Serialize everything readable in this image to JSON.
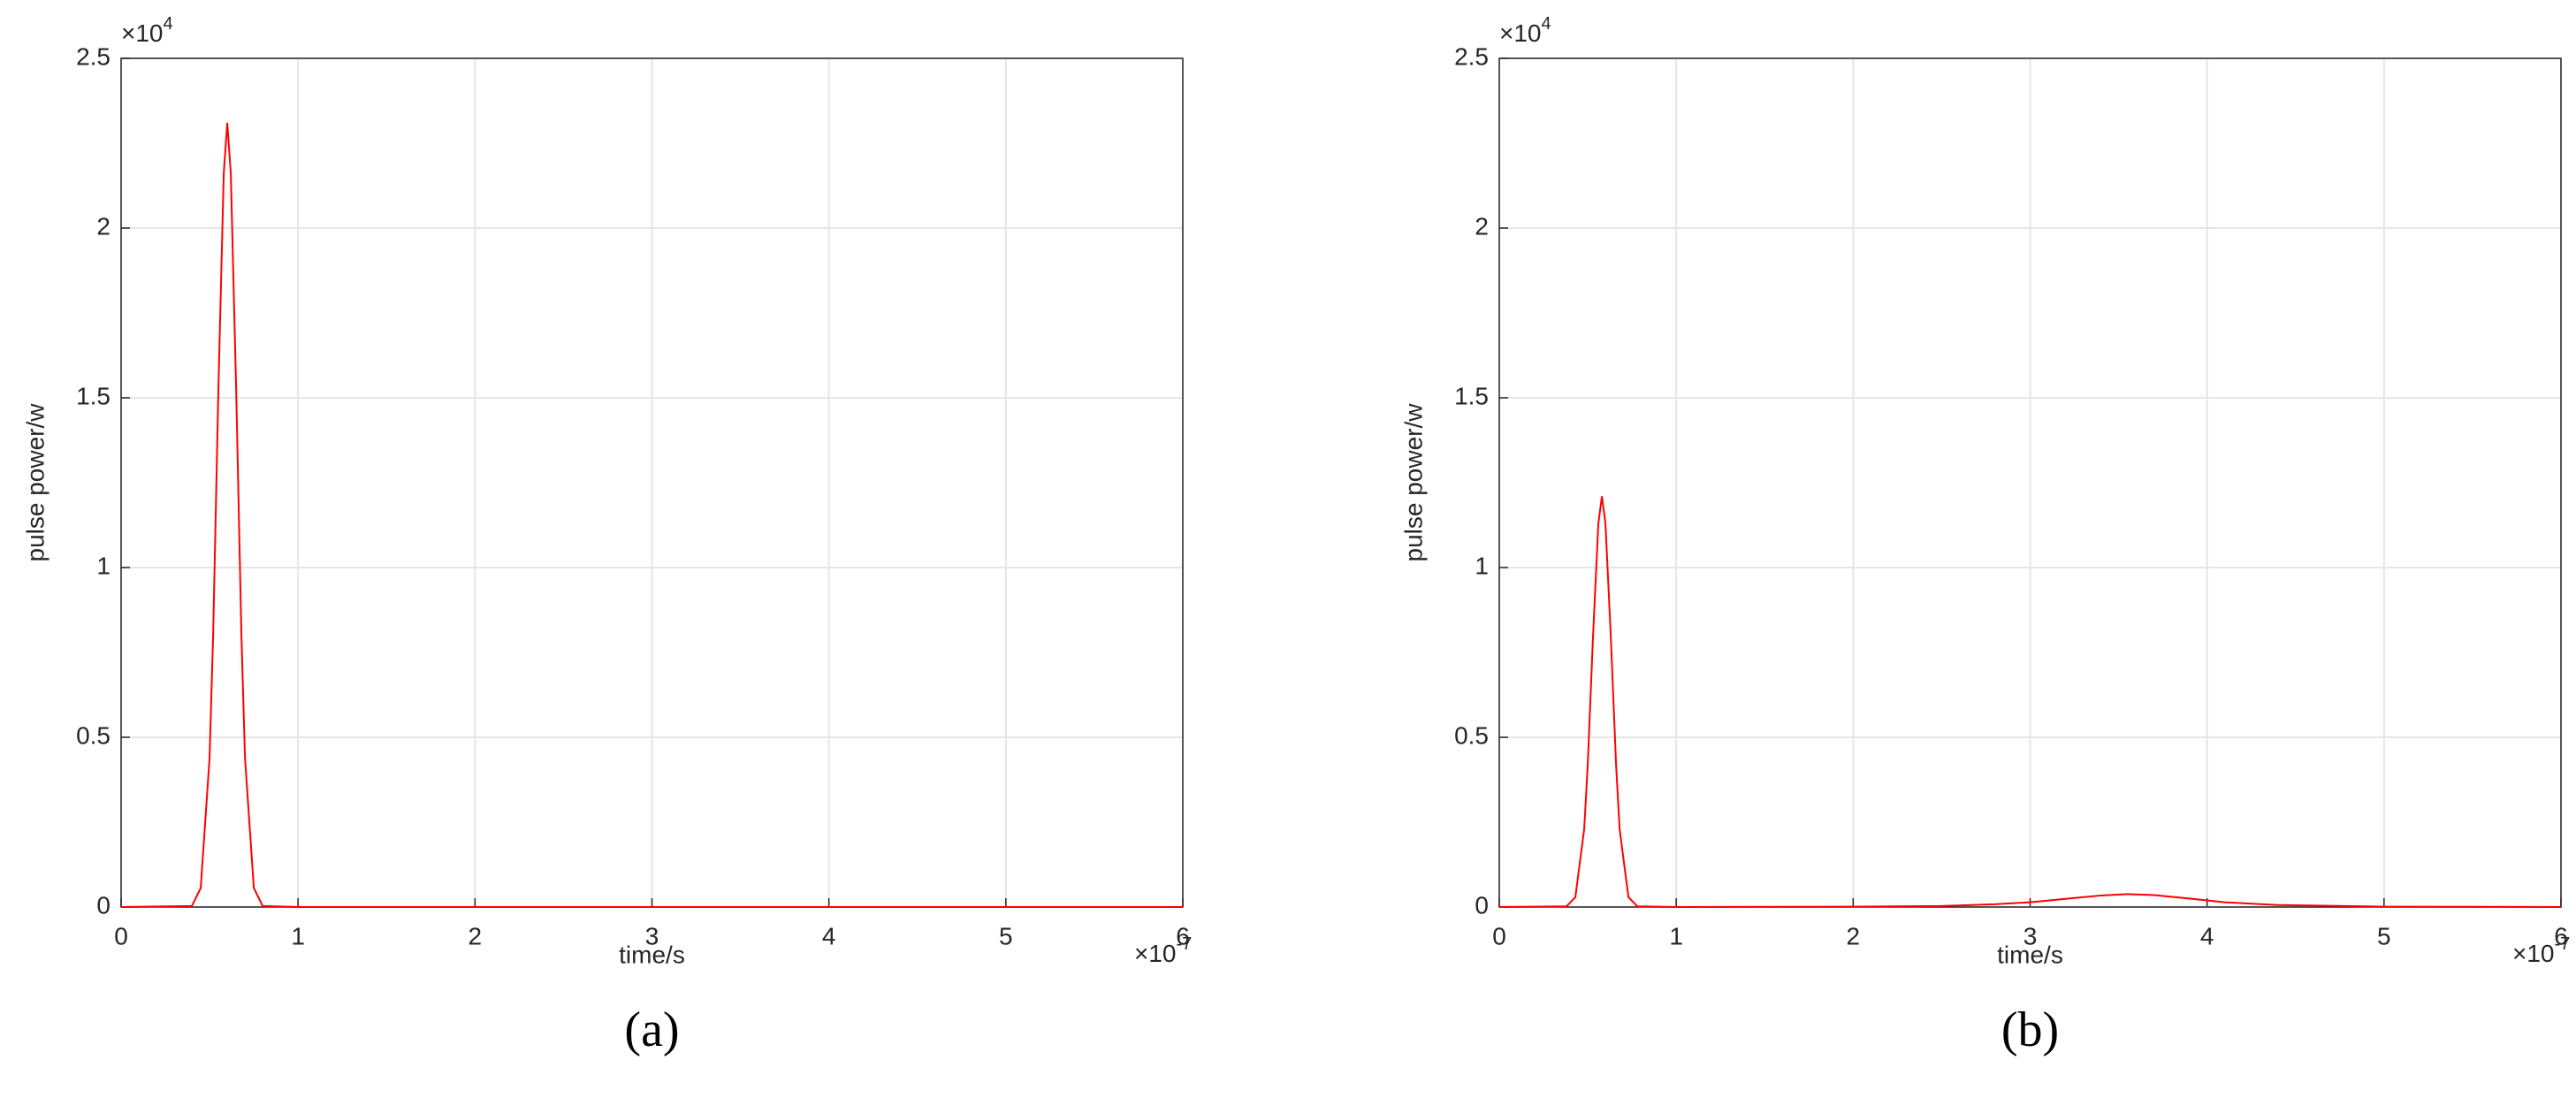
{
  "chart_data": [
    {
      "type": "line",
      "caption": "(a)",
      "x_label": "time/s",
      "y_label": "pulse power/w",
      "x_multiplier": {
        "base": "×10",
        "exponent": "-7"
      },
      "y_multiplier": {
        "base": "×10",
        "exponent": "4"
      },
      "xlim": [
        0,
        6
      ],
      "ylim": [
        0,
        2.5
      ],
      "xticks": [
        0,
        1,
        2,
        3,
        4,
        5,
        6
      ],
      "yticks": [
        0,
        0.5,
        1,
        1.5,
        2,
        2.5
      ],
      "grid": true,
      "x": [
        0,
        0.4,
        0.45,
        0.5,
        0.52,
        0.55,
        0.58,
        0.6,
        0.62,
        0.65,
        0.68,
        0.7,
        0.75,
        0.8,
        1,
        6
      ],
      "series": [
        {
          "color": "#ff0000",
          "values": [
            0,
            0.003,
            0.056,
            0.44,
            0.8,
            1.53,
            2.16,
            2.31,
            2.16,
            1.53,
            0.8,
            0.44,
            0.056,
            0.003,
            0,
            0
          ]
        }
      ]
    },
    {
      "type": "line",
      "caption": "(b)",
      "x_label": "time/s",
      "y_label": "pulse power/w",
      "x_multiplier": {
        "base": "×10",
        "exponent": "-7"
      },
      "y_multiplier": {
        "base": "×10",
        "exponent": "4"
      },
      "xlim": [
        0,
        6
      ],
      "ylim": [
        0,
        2.5
      ],
      "xticks": [
        0,
        1,
        2,
        3,
        4,
        5,
        6
      ],
      "yticks": [
        0,
        0.5,
        1,
        1.5,
        2,
        2.5
      ],
      "grid": true,
      "x": [
        0,
        0.38,
        0.43,
        0.48,
        0.5,
        0.53,
        0.56,
        0.58,
        0.6,
        0.63,
        0.66,
        0.68,
        0.73,
        0.78,
        1,
        2,
        2.5,
        2.8,
        3,
        3.2,
        3.4,
        3.55,
        3.7,
        3.9,
        4.1,
        4.4,
        5,
        6
      ],
      "series": [
        {
          "color": "#ff0000",
          "values": [
            0,
            0.002,
            0.029,
            0.23,
            0.42,
            0.8,
            1.13,
            1.21,
            1.13,
            0.8,
            0.42,
            0.23,
            0.029,
            0.002,
            0,
            0.001,
            0.003,
            0.008,
            0.014,
            0.024,
            0.034,
            0.038,
            0.035,
            0.025,
            0.014,
            0.006,
            0.001,
            0
          ]
        }
      ]
    }
  ]
}
